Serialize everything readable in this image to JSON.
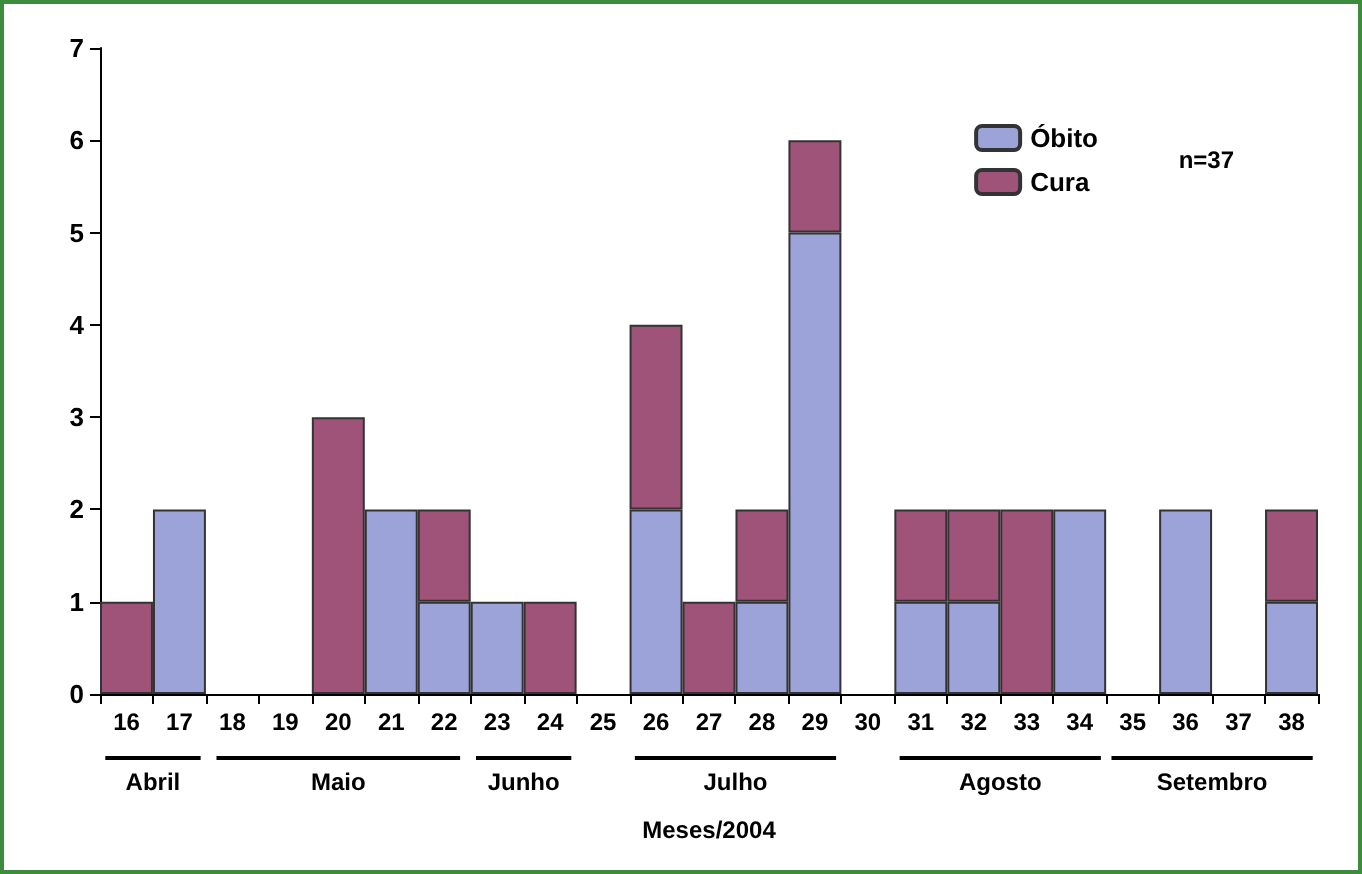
{
  "chart_data": {
    "type": "bar",
    "stacked": true,
    "xlabel": "Meses/2004",
    "categories": [
      "16",
      "17",
      "18",
      "19",
      "20",
      "21",
      "22",
      "23",
      "24",
      "25",
      "26",
      "27",
      "28",
      "29",
      "30",
      "31",
      "32",
      "33",
      "34",
      "35",
      "36",
      "37",
      "38"
    ],
    "series": [
      {
        "name": "Óbito",
        "color": "#9ba3d8",
        "values": [
          0,
          2,
          0,
          0,
          0,
          2,
          1,
          1,
          0,
          0,
          2,
          0,
          1,
          5,
          0,
          1,
          1,
          0,
          2,
          0,
          2,
          0,
          1
        ]
      },
      {
        "name": "Cura",
        "color": "#a05378",
        "values": [
          1,
          0,
          0,
          0,
          3,
          0,
          1,
          0,
          1,
          0,
          2,
          1,
          1,
          1,
          0,
          1,
          1,
          2,
          0,
          0,
          0,
          0,
          1
        ]
      }
    ],
    "ylim": [
      0,
      7
    ],
    "yticks": [
      0,
      1,
      2,
      3,
      4,
      5,
      6,
      7
    ],
    "grid": false,
    "legend": "top right",
    "annotations": [
      "n=37",
      "Abril",
      "Maio",
      "Junho",
      "Julho",
      "Agosto",
      "Setembro"
    ]
  }
}
